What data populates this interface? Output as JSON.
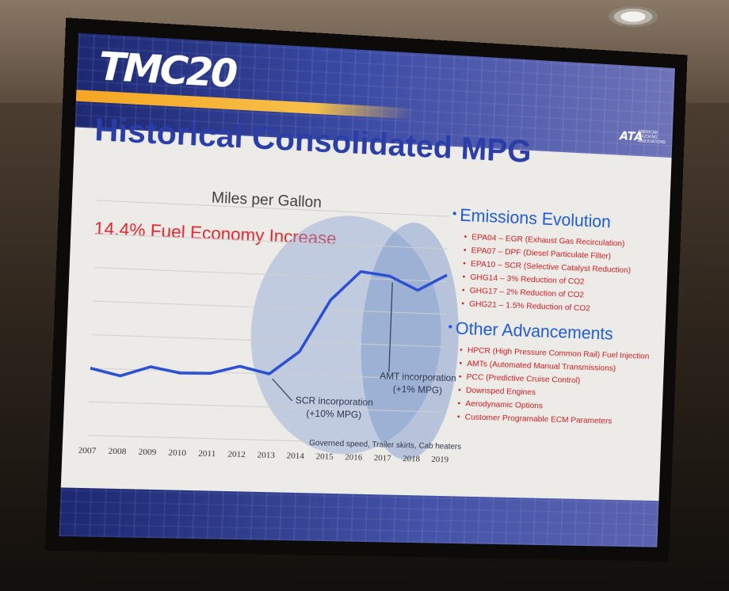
{
  "slide": {
    "logo": "TMC20",
    "brand_logo": "ATA",
    "brand_sub": "AMERICAN TRUCKING ASSOCIATIONS",
    "title": "Historical Consolidated MPG",
    "chart_title": "Miles per Gallon",
    "headline": "14.4% Fuel Economy Increase",
    "annotations": {
      "scr": "SCR incorporation",
      "scr_value": "(+10% MPG)",
      "amt": "AMT incorporation",
      "amt_value": "(+1% MPG)",
      "governed": "Governed speed, Trailer skirts, Cab heaters"
    },
    "emissions_heading": "Emissions Evolution",
    "emissions_items": [
      "EPA04 – EGR (Exhaust Gas Recirculation)",
      "EPA07 – DPF (Diesel Particulate Filter)",
      "EPA10 – SCR (Selective Catalyst Reduction)",
      "GHG14 – 3% Reduction of CO2",
      "GHG17 – 2% Reduction of CO2",
      "GHG21 – 1.5% Reduction of CO2"
    ],
    "other_heading": "Other Advancements",
    "other_items": [
      "HPCR (High Pressure Common Rail) Fuel Injection",
      "AMTs (Automated Manual Transmissions)",
      "PCC (Predictive Cruise Control)",
      "Downsped Engines",
      "Aerodynamic Options",
      "Customer Programable ECM Parameters"
    ]
  },
  "chart_data": {
    "type": "line",
    "title": "Miles per Gallon",
    "x": [
      "2007",
      "2008",
      "2009",
      "2010",
      "2011",
      "2012",
      "2013",
      "2014",
      "2015",
      "2016",
      "2017",
      "2018",
      "2019"
    ],
    "series": [
      {
        "values": [
          6.0,
          5.9,
          6.05,
          5.97,
          5.98,
          6.1,
          6.0,
          6.35,
          7.15,
          7.6,
          7.55,
          7.35,
          7.6
        ]
      }
    ],
    "ylim": [
      5.0,
      8.5
    ],
    "grid": true,
    "color": "#2a4fd0"
  }
}
